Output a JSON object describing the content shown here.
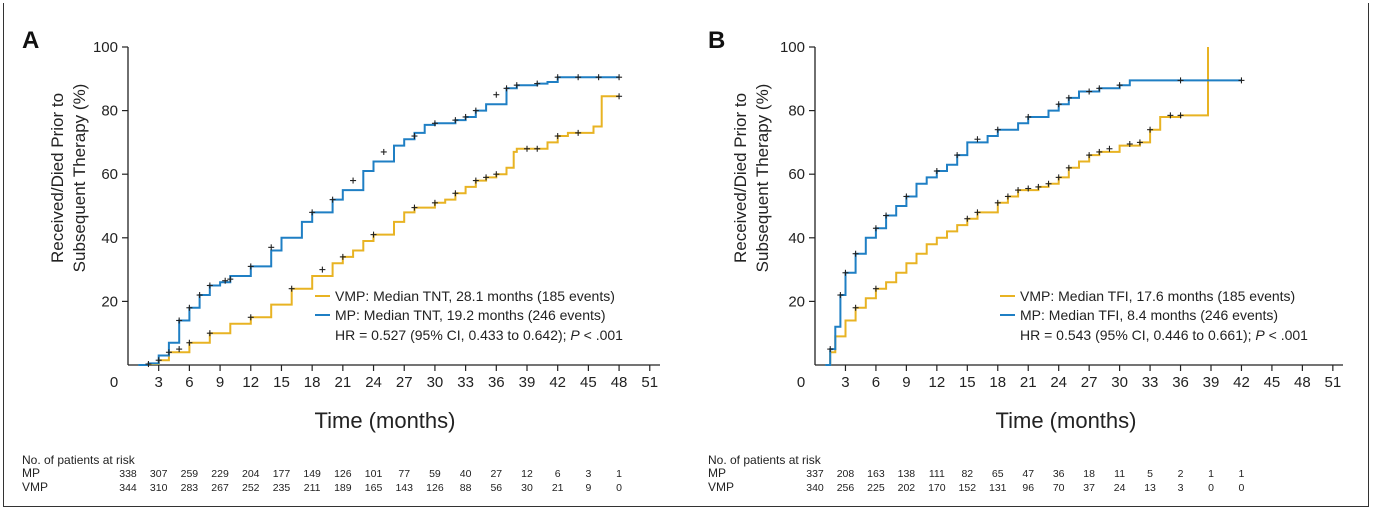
{
  "chart_data": [
    {
      "type": "line",
      "panel_label": "A",
      "xlabel": "Time (months)",
      "ylabel": [
        "Received/Died Prior to",
        "Subsequent Therapy (%)"
      ],
      "xlim": [
        0,
        52
      ],
      "ylim": [
        0,
        100
      ],
      "xticks": [
        0,
        3,
        6,
        9,
        12,
        15,
        18,
        21,
        24,
        27,
        30,
        33,
        36,
        39,
        42,
        45,
        48,
        51
      ],
      "yticks": [
        20,
        40,
        60,
        80,
        100
      ],
      "zero_label": "0",
      "colors": {
        "VMP": "#e8b323",
        "MP": "#1f7fc4"
      },
      "legend": [
        {
          "series": "VMP",
          "text": "VMP: Median TNT, 28.1 months (185 events)"
        },
        {
          "series": "MP",
          "text": "MP: Median TNT, 19.2 months (246 events)"
        }
      ],
      "hr_text": {
        "prefix": "HR = 0.527 (95% CI, 0.433 to 0.642); ",
        "p_letter": "P",
        "suffix": " < .001"
      },
      "series": [
        {
          "name": "MP",
          "points": [
            [
              1,
              0
            ],
            [
              2,
              0.5
            ],
            [
              3,
              3
            ],
            [
              4,
              7
            ],
            [
              5,
              14
            ],
            [
              6,
              18
            ],
            [
              7,
              22
            ],
            [
              8,
              25
            ],
            [
              9,
              26
            ],
            [
              10,
              28
            ],
            [
              12,
              31
            ],
            [
              14,
              36
            ],
            [
              15,
              40
            ],
            [
              17,
              45
            ],
            [
              18,
              48
            ],
            [
              20,
              52
            ],
            [
              21,
              55
            ],
            [
              23,
              61
            ],
            [
              24,
              64
            ],
            [
              26,
              69
            ],
            [
              27,
              71
            ],
            [
              28,
              73
            ],
            [
              29,
              75.5
            ],
            [
              30,
              76
            ],
            [
              32,
              77
            ],
            [
              33,
              78
            ],
            [
              34,
              80
            ],
            [
              35,
              82
            ],
            [
              37,
              87
            ],
            [
              38,
              88
            ],
            [
              40,
              88.5
            ],
            [
              41,
              89
            ],
            [
              42,
              90.5
            ],
            [
              48,
              90.5
            ]
          ]
        },
        {
          "name": "VMP",
          "points": [
            [
              1,
              0
            ],
            [
              2,
              0.3
            ],
            [
              3,
              1.5
            ],
            [
              4,
              4
            ],
            [
              6,
              7
            ],
            [
              8,
              10
            ],
            [
              10,
              13
            ],
            [
              12,
              15
            ],
            [
              14,
              19
            ],
            [
              16,
              24
            ],
            [
              18,
              28
            ],
            [
              20,
              32
            ],
            [
              21,
              34
            ],
            [
              22,
              36
            ],
            [
              23,
              39
            ],
            [
              24,
              41
            ],
            [
              26,
              45
            ],
            [
              27,
              48
            ],
            [
              28,
              49.5
            ],
            [
              30,
              51
            ],
            [
              31,
              52
            ],
            [
              32,
              54
            ],
            [
              33,
              56
            ],
            [
              34,
              58
            ],
            [
              35,
              59
            ],
            [
              36,
              60
            ],
            [
              37,
              62
            ],
            [
              37.7,
              67
            ],
            [
              38,
              68
            ],
            [
              40,
              68
            ],
            [
              41,
              70
            ],
            [
              42,
              72
            ],
            [
              43,
              73
            ],
            [
              45.3,
              73
            ],
            [
              45.5,
              75
            ],
            [
              46.3,
              75
            ],
            [
              46.3,
              84.5
            ],
            [
              48,
              84.5
            ]
          ]
        }
      ],
      "censor_marks": {
        "MP": [
          [
            5,
            14
          ],
          [
            6,
            18
          ],
          [
            7,
            22
          ],
          [
            8,
            25
          ],
          [
            9.5,
            26.5
          ],
          [
            10,
            27
          ],
          [
            12,
            31
          ],
          [
            14,
            37
          ],
          [
            18,
            48
          ],
          [
            20,
            52
          ],
          [
            22,
            58
          ],
          [
            25,
            67
          ],
          [
            28,
            72
          ],
          [
            30,
            76
          ],
          [
            32,
            77
          ],
          [
            33,
            78
          ],
          [
            34,
            80
          ],
          [
            36,
            85
          ],
          [
            37,
            87
          ],
          [
            38,
            88
          ],
          [
            40,
            88.5
          ],
          [
            42,
            90.5
          ],
          [
            44,
            90.5
          ],
          [
            46,
            90.5
          ],
          [
            48,
            90.5
          ]
        ],
        "VMP": [
          [
            2,
            0.3
          ],
          [
            3,
            1.5
          ],
          [
            4,
            4
          ],
          [
            5,
            5
          ],
          [
            6,
            7
          ],
          [
            8,
            10
          ],
          [
            12,
            15
          ],
          [
            16,
            24
          ],
          [
            19,
            30
          ],
          [
            21,
            34
          ],
          [
            24,
            41
          ],
          [
            28,
            49.5
          ],
          [
            30,
            51
          ],
          [
            32,
            54
          ],
          [
            34,
            58
          ],
          [
            35,
            59
          ],
          [
            36,
            60
          ],
          [
            39,
            68
          ],
          [
            40,
            68
          ],
          [
            42,
            72
          ],
          [
            44,
            73
          ],
          [
            48,
            84.5
          ]
        ]
      },
      "risk_table": {
        "title": "No. of patients at risk",
        "rows": [
          {
            "label": "MP",
            "values": [
              "338",
              "307",
              "259",
              "229",
              "204",
              "177",
              "149",
              "126",
              "101",
              "77",
              "59",
              "40",
              "27",
              "12",
              "6",
              "3",
              "1"
            ]
          },
          {
            "label": "VMP",
            "values": [
              "344",
              "310",
              "283",
              "267",
              "252",
              "235",
              "211",
              "189",
              "165",
              "143",
              "126",
              "88",
              "56",
              "30",
              "21",
              "9",
              "0"
            ]
          }
        ]
      }
    },
    {
      "type": "line",
      "panel_label": "B",
      "xlabel": "Time (months)",
      "ylabel": [
        "Received/Died Prior to",
        "Subsequent Therapy (%)"
      ],
      "xlim": [
        0,
        52
      ],
      "ylim": [
        0,
        100
      ],
      "xticks": [
        0,
        3,
        6,
        9,
        12,
        15,
        18,
        21,
        24,
        27,
        30,
        33,
        36,
        39,
        42,
        45,
        48,
        51
      ],
      "yticks": [
        20,
        40,
        60,
        80,
        100
      ],
      "zero_label": "0",
      "colors": {
        "VMP": "#e8b323",
        "MP": "#1f7fc4"
      },
      "legend": [
        {
          "series": "VMP",
          "text": "VMP: Median TFI, 17.6 months (185 events)"
        },
        {
          "series": "MP",
          "text": "MP: Median TFI, 8.4 months (246 events)"
        }
      ],
      "hr_text": {
        "prefix": "HR = 0.543 (95% CI, 0.446 to 0.661); ",
        "p_letter": "P",
        "suffix": " < .001"
      },
      "series": [
        {
          "name": "MP",
          "points": [
            [
              1,
              0
            ],
            [
              1.5,
              5
            ],
            [
              2,
              12
            ],
            [
              2.5,
              22
            ],
            [
              3,
              29
            ],
            [
              4,
              35
            ],
            [
              5,
              40
            ],
            [
              6,
              43
            ],
            [
              7,
              47
            ],
            [
              8,
              50
            ],
            [
              9,
              53
            ],
            [
              10,
              57
            ],
            [
              11,
              59
            ],
            [
              12,
              61
            ],
            [
              13,
              63
            ],
            [
              14,
              66
            ],
            [
              15,
              70
            ],
            [
              17,
              72
            ],
            [
              18,
              74
            ],
            [
              20,
              76
            ],
            [
              21,
              78
            ],
            [
              23,
              80
            ],
            [
              24,
              82
            ],
            [
              25,
              84
            ],
            [
              26,
              86
            ],
            [
              28,
              87
            ],
            [
              30,
              88
            ],
            [
              31,
              89.5
            ],
            [
              42,
              89.5
            ]
          ]
        },
        {
          "name": "VMP",
          "points": [
            [
              1,
              0
            ],
            [
              1.5,
              4
            ],
            [
              2,
              9
            ],
            [
              3,
              14
            ],
            [
              4,
              18
            ],
            [
              5,
              21
            ],
            [
              6,
              24
            ],
            [
              7,
              26
            ],
            [
              8,
              29
            ],
            [
              9,
              32
            ],
            [
              10,
              35
            ],
            [
              11,
              38
            ],
            [
              12,
              40
            ],
            [
              13,
              42
            ],
            [
              14,
              44
            ],
            [
              15,
              46
            ],
            [
              16,
              48
            ],
            [
              18,
              51
            ],
            [
              19,
              53
            ],
            [
              20,
              55
            ],
            [
              22,
              56
            ],
            [
              23,
              57
            ],
            [
              24,
              59
            ],
            [
              25,
              62
            ],
            [
              26,
              64
            ],
            [
              27,
              66
            ],
            [
              28,
              67
            ],
            [
              30,
              69
            ],
            [
              32,
              70
            ],
            [
              33,
              74
            ],
            [
              34,
              78
            ],
            [
              36,
              78.5
            ],
            [
              38.7,
              78.5
            ],
            [
              38.7,
              100
            ]
          ]
        }
      ],
      "censor_marks": {
        "MP": [
          [
            1.5,
            5
          ],
          [
            2.5,
            22
          ],
          [
            3,
            29
          ],
          [
            4,
            35
          ],
          [
            6,
            43
          ],
          [
            7,
            47
          ],
          [
            9,
            53
          ],
          [
            12,
            61
          ],
          [
            14,
            66
          ],
          [
            16,
            71
          ],
          [
            18,
            74
          ],
          [
            21,
            78
          ],
          [
            24,
            82
          ],
          [
            25,
            84
          ],
          [
            27,
            86
          ],
          [
            28,
            87
          ],
          [
            30,
            88
          ],
          [
            36,
            89.5
          ],
          [
            42,
            89.5
          ]
        ],
        "VMP": [
          [
            4,
            18
          ],
          [
            6,
            24
          ],
          [
            15,
            46
          ],
          [
            16,
            48
          ],
          [
            18,
            51
          ],
          [
            19,
            53
          ],
          [
            20,
            55
          ],
          [
            21,
            55.5
          ],
          [
            22,
            56
          ],
          [
            23,
            57
          ],
          [
            24,
            59
          ],
          [
            25,
            62
          ],
          [
            27,
            66
          ],
          [
            28,
            67
          ],
          [
            29,
            68
          ],
          [
            31,
            69.5
          ],
          [
            32,
            70
          ],
          [
            33,
            74
          ],
          [
            35,
            78.5
          ],
          [
            36,
            78.5
          ]
        ]
      },
      "risk_table": {
        "title": "No. of patients at risk",
        "rows": [
          {
            "label": "MP",
            "values": [
              "337",
              "208",
              "163",
              "138",
              "111",
              "82",
              "65",
              "47",
              "36",
              "18",
              "11",
              "5",
              "2",
              "1",
              "1"
            ]
          },
          {
            "label": "VMP",
            "values": [
              "340",
              "256",
              "225",
              "202",
              "170",
              "152",
              "131",
              "96",
              "70",
              "37",
              "24",
              "13",
              "3",
              "0",
              "0"
            ]
          }
        ]
      }
    }
  ]
}
